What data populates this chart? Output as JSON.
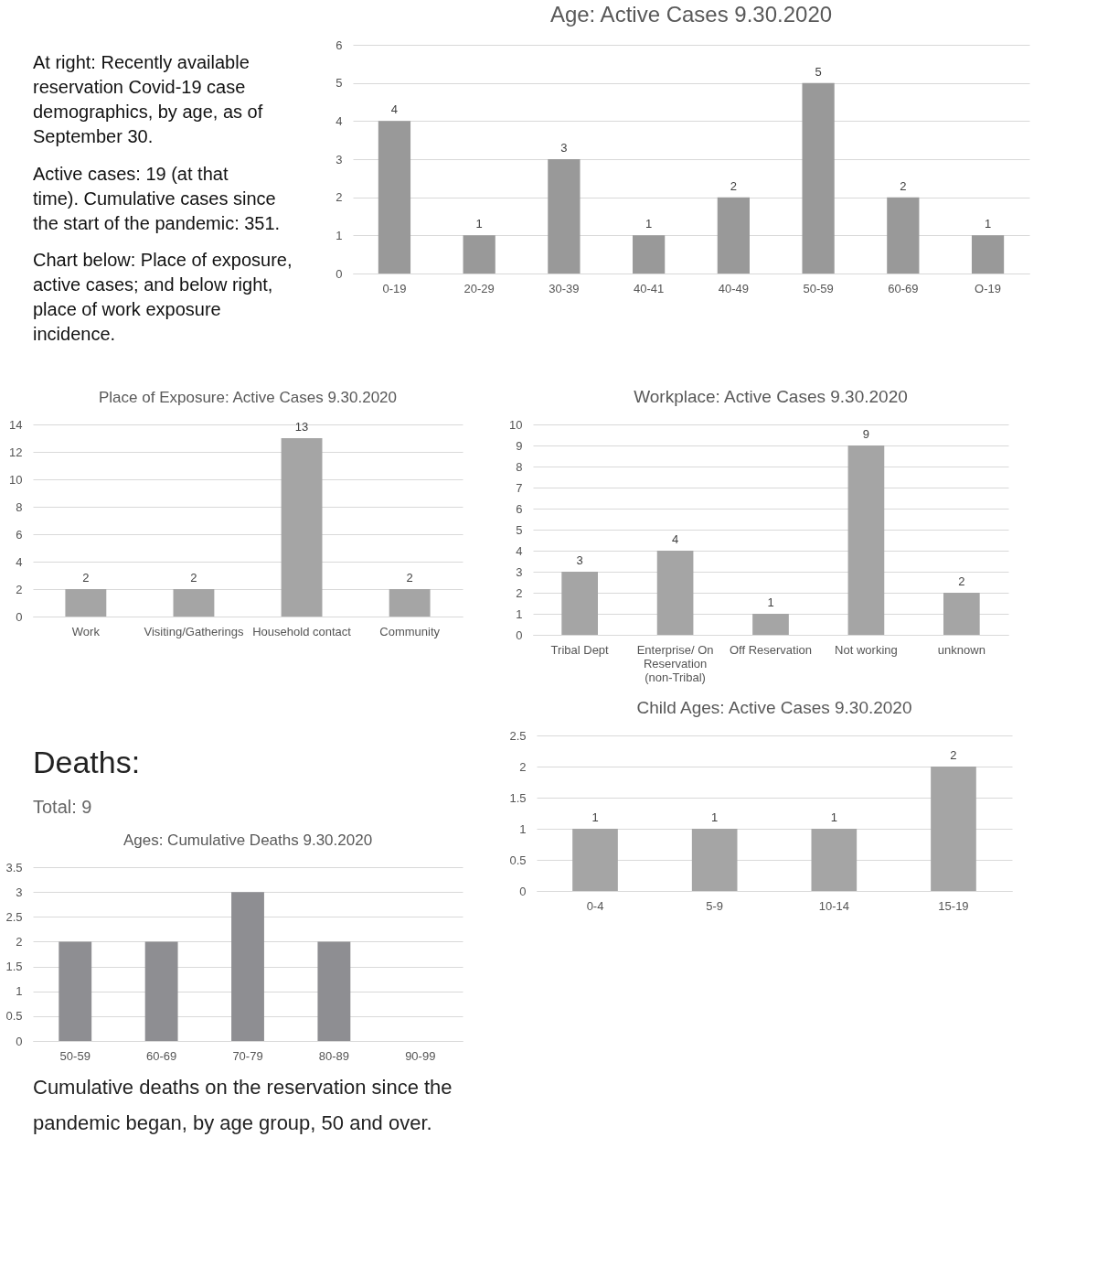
{
  "chart_data": [
    {
      "type": "other",
      "annotations": [
        "At right: Recently available reservation Covid-19 case demographics, by age, as of September 30.",
        "Active cases: 19 (at that time).  Cumulative cases since the start of the pandemic: 351.",
        "Chart below: Place of exposure, active cases; and below right, place of work exposure incidence."
      ]
    },
    {
      "type": "bar",
      "title": "Age: Active Cases 9.30.2020",
      "categories": [
        "0-19",
        "20-29",
        "30-39",
        "40-41",
        "40-49",
        "50-59",
        "60-69",
        "O-19"
      ],
      "values": [
        4,
        1,
        3,
        1,
        2,
        5,
        2,
        1
      ],
      "color": "#999999",
      "ylim": [
        0,
        6
      ],
      "yticks": [
        0,
        1,
        2,
        3,
        4,
        5,
        6
      ],
      "grid": "y",
      "data_labels": true
    },
    {
      "type": "bar",
      "title": "Place of Exposure: Active Cases 9.30.2020",
      "categories": [
        "Work",
        "Visiting/Gatherings",
        "Household contact",
        "Community"
      ],
      "values": [
        2,
        2,
        13,
        2
      ],
      "color": "#a5a5a5",
      "ylim": [
        0,
        14
      ],
      "yticks": [
        0,
        2,
        4,
        6,
        8,
        10,
        12,
        14
      ],
      "grid": "y",
      "data_labels": true
    },
    {
      "type": "bar",
      "title": "Workplace: Active Cases 9.30.2020",
      "categories": [
        "Tribal Dept",
        "Enterprise/ On Reservation (non-Tribal)",
        "Off Reservation",
        "Not working",
        "unknown"
      ],
      "values": [
        3,
        4,
        1,
        9,
        2
      ],
      "color": "#a5a5a5",
      "ylim": [
        0,
        10
      ],
      "yticks": [
        0,
        1,
        2,
        3,
        4,
        5,
        6,
        7,
        8,
        9,
        10
      ],
      "grid": "y",
      "data_labels": true
    },
    {
      "type": "bar",
      "title": "Ages: Cumulative Deaths 9.30.2020",
      "annotations": [
        "Deaths:",
        "Total: 9",
        "Cumulative deaths on the reservation since the pandemic began, by age group, 50 and over."
      ],
      "categories": [
        "50-59",
        "60-69",
        "70-79",
        "80-89",
        "90-99"
      ],
      "values": [
        2,
        2,
        3,
        2,
        0
      ],
      "color": "#8e8e92",
      "ylim": [
        0,
        3.5
      ],
      "yticks": [
        0,
        0.5,
        1,
        1.5,
        2,
        2.5,
        3,
        3.5
      ],
      "grid": "y"
    },
    {
      "type": "bar",
      "title": "Child Ages: Active Cases 9.30.2020",
      "categories": [
        "0-4",
        "5-9",
        "10-14",
        "15-19"
      ],
      "values": [
        1,
        1,
        1,
        2
      ],
      "color": "#a5a5a5",
      "ylim": [
        0,
        2.5
      ],
      "yticks": [
        0,
        0.5,
        1,
        1.5,
        2,
        2.5
      ],
      "grid": "y",
      "data_labels": true
    }
  ]
}
